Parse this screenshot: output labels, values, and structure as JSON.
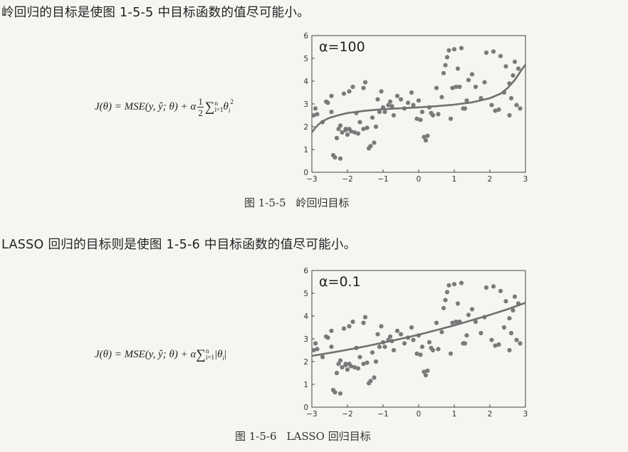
{
  "text": {
    "line1": "岭回归的目标是使图 1-5-5 中目标函数的值尽可能小。",
    "line2": "LASSO 回归的目标则是使图 1-5-6 中目标函数的值尽可能小。"
  },
  "figures": [
    {
      "caption_num": "图 1-5-5",
      "caption_text": "岭回归目标",
      "formula": {
        "lhs": "J(θ) = MSE(y, ŷ; θ) + α",
        "frac_num": "1",
        "frac_den": "2",
        "sum_top": "n",
        "sum_bottom": "i=1",
        "term": "θ",
        "term_sub": "i",
        "term_sup": "2"
      }
    },
    {
      "caption_num": "图 1-5-6",
      "caption_text": "LASSO 回归目标",
      "formula": {
        "lhs": "J(θ) = MSE(y, ŷ; θ) + α",
        "sum_top": "n",
        "sum_bottom": "i=1",
        "term": "|θ",
        "term_sub": "i",
        "term_end": "|"
      }
    }
  ],
  "chart_data": [
    {
      "type": "scatter",
      "title": "",
      "annotation": "α=100",
      "xlim": [
        -3,
        3
      ],
      "ylim": [
        0,
        6
      ],
      "xticks": [
        "−3",
        "−2",
        "−1",
        "0",
        "1",
        "2",
        "3"
      ],
      "yticks": [
        "0",
        "1",
        "2",
        "3",
        "4",
        "5",
        "6"
      ],
      "grid": false,
      "point_color": "#7a7a7a",
      "line_color": "#707070",
      "points": [
        [
          -2.95,
          2.5
        ],
        [
          -2.9,
          2.8
        ],
        [
          -2.85,
          2.55
        ],
        [
          -2.7,
          2.2
        ],
        [
          -2.6,
          3.1
        ],
        [
          -2.55,
          3.05
        ],
        [
          -2.45,
          2.65
        ],
        [
          -2.45,
          3.35
        ],
        [
          -2.4,
          0.75
        ],
        [
          -2.35,
          0.65
        ],
        [
          -2.3,
          1.5
        ],
        [
          -2.25,
          1.9
        ],
        [
          -2.2,
          0.6
        ],
        [
          -2.2,
          2.05
        ],
        [
          -2.15,
          1.75
        ],
        [
          -2.1,
          3.45
        ],
        [
          -2.05,
          1.85
        ],
        [
          -2.05,
          1.9
        ],
        [
          -2.0,
          1.65
        ],
        [
          -1.95,
          1.9
        ],
        [
          -1.95,
          3.55
        ],
        [
          -1.9,
          1.8
        ],
        [
          -1.85,
          3.75
        ],
        [
          -1.8,
          1.75
        ],
        [
          -1.75,
          2.6
        ],
        [
          -1.7,
          1.7
        ],
        [
          -1.65,
          2.2
        ],
        [
          -1.55,
          3.7
        ],
        [
          -1.55,
          1.9
        ],
        [
          -1.5,
          3.95
        ],
        [
          -1.45,
          1.95
        ],
        [
          -1.4,
          1.05
        ],
        [
          -1.35,
          1.15
        ],
        [
          -1.3,
          2.4
        ],
        [
          -1.25,
          1.3
        ],
        [
          -1.2,
          2.0
        ],
        [
          -1.15,
          3.2
        ],
        [
          -1.1,
          2.65
        ],
        [
          -1.05,
          3.55
        ],
        [
          -1.0,
          2.85
        ],
        [
          -0.95,
          2.65
        ],
        [
          -0.85,
          2.95
        ],
        [
          -0.8,
          3.1
        ],
        [
          -0.75,
          2.9
        ],
        [
          -0.7,
          2.5
        ],
        [
          -0.6,
          3.35
        ],
        [
          -0.5,
          3.2
        ],
        [
          -0.4,
          2.8
        ],
        [
          -0.3,
          3.05
        ],
        [
          -0.2,
          3.5
        ],
        [
          -0.15,
          2.95
        ],
        [
          -0.05,
          2.35
        ],
        [
          0.0,
          3.15
        ],
        [
          0.05,
          2.3
        ],
        [
          0.1,
          2.65
        ],
        [
          0.15,
          1.55
        ],
        [
          0.2,
          1.4
        ],
        [
          0.25,
          1.6
        ],
        [
          0.3,
          2.85
        ],
        [
          0.35,
          2.6
        ],
        [
          0.4,
          2.5
        ],
        [
          0.5,
          3.7
        ],
        [
          0.55,
          2.55
        ],
        [
          0.65,
          3.3
        ],
        [
          0.7,
          4.35
        ],
        [
          0.75,
          4.7
        ],
        [
          0.8,
          5.05
        ],
        [
          0.85,
          5.35
        ],
        [
          0.9,
          2.35
        ],
        [
          0.95,
          3.7
        ],
        [
          1.0,
          5.4
        ],
        [
          1.05,
          3.75
        ],
        [
          1.1,
          4.55
        ],
        [
          1.15,
          3.75
        ],
        [
          1.2,
          5.45
        ],
        [
          1.25,
          2.8
        ],
        [
          1.3,
          2.8
        ],
        [
          1.35,
          3.15
        ],
        [
          1.4,
          4.05
        ],
        [
          1.5,
          4.3
        ],
        [
          1.6,
          3.75
        ],
        [
          1.75,
          3.25
        ],
        [
          1.85,
          3.95
        ],
        [
          1.9,
          5.25
        ],
        [
          2.05,
          2.95
        ],
        [
          2.1,
          5.3
        ],
        [
          2.15,
          2.7
        ],
        [
          2.25,
          2.75
        ],
        [
          2.3,
          5.1
        ],
        [
          2.4,
          3.5
        ],
        [
          2.45,
          4.65
        ],
        [
          2.55,
          3.9
        ],
        [
          2.55,
          2.5
        ],
        [
          2.6,
          3.25
        ],
        [
          2.65,
          4.25
        ],
        [
          2.7,
          4.85
        ],
        [
          2.75,
          2.95
        ],
        [
          2.8,
          4.55
        ],
        [
          2.85,
          2.8
        ]
      ],
      "curve": [
        [
          -3,
          1.75
        ],
        [
          -2.9,
          1.96
        ],
        [
          -2.8,
          2.12
        ],
        [
          -2.7,
          2.23
        ],
        [
          -2.6,
          2.32
        ],
        [
          -2.5,
          2.39
        ],
        [
          -2.25,
          2.51
        ],
        [
          -2.0,
          2.6
        ],
        [
          -1.5,
          2.7
        ],
        [
          -1.0,
          2.77
        ],
        [
          -0.5,
          2.81
        ],
        [
          0.0,
          2.85
        ],
        [
          0.5,
          2.9
        ],
        [
          1.0,
          2.97
        ],
        [
          1.5,
          3.07
        ],
        [
          2.0,
          3.25
        ],
        [
          2.3,
          3.45
        ],
        [
          2.5,
          3.7
        ],
        [
          2.7,
          4.05
        ],
        [
          2.8,
          4.28
        ],
        [
          2.9,
          4.52
        ],
        [
          3.0,
          4.72
        ]
      ]
    },
    {
      "type": "scatter",
      "title": "",
      "annotation": "α=0.1",
      "xlim": [
        -3,
        3
      ],
      "ylim": [
        0,
        6
      ],
      "xticks": [
        "−3",
        "−2",
        "−1",
        "0",
        "1",
        "2",
        "3"
      ],
      "yticks": [
        "0",
        "1",
        "2",
        "3",
        "4",
        "5",
        "6"
      ],
      "grid": false,
      "point_color": "#7a7a7a",
      "line_color": "#707070",
      "points": [
        [
          -2.95,
          2.5
        ],
        [
          -2.9,
          2.8
        ],
        [
          -2.85,
          2.55
        ],
        [
          -2.7,
          2.2
        ],
        [
          -2.6,
          3.1
        ],
        [
          -2.55,
          3.05
        ],
        [
          -2.45,
          2.65
        ],
        [
          -2.45,
          3.35
        ],
        [
          -2.4,
          0.75
        ],
        [
          -2.35,
          0.65
        ],
        [
          -2.3,
          1.5
        ],
        [
          -2.25,
          1.9
        ],
        [
          -2.2,
          0.6
        ],
        [
          -2.2,
          2.05
        ],
        [
          -2.15,
          1.75
        ],
        [
          -2.1,
          3.45
        ],
        [
          -2.05,
          1.85
        ],
        [
          -2.05,
          1.9
        ],
        [
          -2.0,
          1.65
        ],
        [
          -1.95,
          1.9
        ],
        [
          -1.95,
          3.55
        ],
        [
          -1.9,
          1.8
        ],
        [
          -1.85,
          3.75
        ],
        [
          -1.8,
          1.75
        ],
        [
          -1.75,
          2.6
        ],
        [
          -1.7,
          1.7
        ],
        [
          -1.65,
          2.2
        ],
        [
          -1.55,
          3.7
        ],
        [
          -1.55,
          1.9
        ],
        [
          -1.5,
          3.95
        ],
        [
          -1.45,
          1.95
        ],
        [
          -1.4,
          1.05
        ],
        [
          -1.35,
          1.15
        ],
        [
          -1.3,
          2.4
        ],
        [
          -1.25,
          1.3
        ],
        [
          -1.2,
          2.0
        ],
        [
          -1.15,
          3.2
        ],
        [
          -1.1,
          2.65
        ],
        [
          -1.05,
          3.55
        ],
        [
          -1.0,
          2.85
        ],
        [
          -0.95,
          2.65
        ],
        [
          -0.85,
          2.95
        ],
        [
          -0.8,
          3.1
        ],
        [
          -0.75,
          2.9
        ],
        [
          -0.7,
          2.5
        ],
        [
          -0.6,
          3.35
        ],
        [
          -0.5,
          3.2
        ],
        [
          -0.4,
          2.8
        ],
        [
          -0.3,
          3.05
        ],
        [
          -0.2,
          3.5
        ],
        [
          -0.15,
          2.95
        ],
        [
          -0.05,
          2.35
        ],
        [
          0.0,
          3.15
        ],
        [
          0.05,
          2.3
        ],
        [
          0.1,
          2.65
        ],
        [
          0.15,
          1.55
        ],
        [
          0.2,
          1.4
        ],
        [
          0.25,
          1.6
        ],
        [
          0.3,
          2.85
        ],
        [
          0.35,
          2.6
        ],
        [
          0.4,
          2.5
        ],
        [
          0.5,
          3.7
        ],
        [
          0.55,
          2.55
        ],
        [
          0.65,
          3.3
        ],
        [
          0.7,
          4.35
        ],
        [
          0.75,
          4.7
        ],
        [
          0.8,
          5.05
        ],
        [
          0.85,
          5.35
        ],
        [
          0.9,
          2.35
        ],
        [
          0.95,
          3.7
        ],
        [
          1.0,
          5.4
        ],
        [
          1.05,
          3.75
        ],
        [
          1.1,
          4.55
        ],
        [
          1.15,
          3.75
        ],
        [
          1.2,
          5.45
        ],
        [
          1.25,
          2.8
        ],
        [
          1.3,
          2.8
        ],
        [
          1.35,
          3.15
        ],
        [
          1.4,
          4.05
        ],
        [
          1.5,
          4.3
        ],
        [
          1.6,
          3.75
        ],
        [
          1.75,
          3.25
        ],
        [
          1.85,
          3.95
        ],
        [
          1.9,
          5.25
        ],
        [
          2.05,
          2.95
        ],
        [
          2.1,
          5.3
        ],
        [
          2.15,
          2.7
        ],
        [
          2.25,
          2.75
        ],
        [
          2.3,
          5.1
        ],
        [
          2.4,
          3.5
        ],
        [
          2.45,
          4.65
        ],
        [
          2.55,
          3.9
        ],
        [
          2.55,
          2.5
        ],
        [
          2.6,
          3.25
        ],
        [
          2.65,
          4.25
        ],
        [
          2.7,
          4.85
        ],
        [
          2.75,
          2.95
        ],
        [
          2.8,
          4.55
        ],
        [
          2.85,
          2.8
        ]
      ],
      "curve": [
        [
          -3,
          2.25
        ],
        [
          -2.5,
          2.38
        ],
        [
          -2.0,
          2.52
        ],
        [
          -1.5,
          2.67
        ],
        [
          -1.0,
          2.83
        ],
        [
          -0.5,
          3.0
        ],
        [
          0.0,
          3.18
        ],
        [
          0.5,
          3.38
        ],
        [
          1.0,
          3.59
        ],
        [
          1.5,
          3.82
        ],
        [
          2.0,
          4.05
        ],
        [
          2.5,
          4.3
        ],
        [
          3.0,
          4.58
        ]
      ]
    }
  ]
}
